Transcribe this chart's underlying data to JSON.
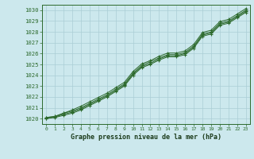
{
  "title": "Graphe pression niveau de la mer (hPa)",
  "background_color": "#cce8ed",
  "grid_color": "#aacdd5",
  "line_color": "#2d6a2d",
  "marker_color": "#2d6a2d",
  "xlim": [
    -0.5,
    23.5
  ],
  "ylim": [
    1019.5,
    1030.5
  ],
  "yticks": [
    1020,
    1021,
    1022,
    1023,
    1024,
    1025,
    1026,
    1027,
    1028,
    1029,
    1030
  ],
  "xticks": [
    0,
    1,
    2,
    3,
    4,
    5,
    6,
    7,
    8,
    9,
    10,
    11,
    12,
    13,
    14,
    15,
    16,
    17,
    18,
    19,
    20,
    21,
    22,
    23
  ],
  "lines": [
    [
      1020.1,
      1020.2,
      1020.5,
      1020.7,
      1021.0,
      1021.4,
      1021.8,
      1022.2,
      1022.7,
      1023.2,
      1024.2,
      1024.9,
      1025.25,
      1025.6,
      1025.9,
      1025.9,
      1026.1,
      1026.7,
      1027.8,
      1028.0,
      1028.8,
      1029.0,
      1029.5,
      1030.0
    ],
    [
      1020.1,
      1020.2,
      1020.5,
      1020.8,
      1021.15,
      1021.55,
      1021.95,
      1022.35,
      1022.85,
      1023.35,
      1024.35,
      1025.05,
      1025.35,
      1025.75,
      1026.05,
      1026.05,
      1026.25,
      1026.85,
      1027.95,
      1028.15,
      1028.95,
      1029.15,
      1029.65,
      1030.15
    ],
    [
      1020.05,
      1020.15,
      1020.4,
      1020.6,
      1020.9,
      1021.3,
      1021.7,
      1022.1,
      1022.6,
      1023.1,
      1024.1,
      1024.8,
      1025.1,
      1025.5,
      1025.8,
      1025.8,
      1026.0,
      1026.6,
      1027.7,
      1027.9,
      1028.7,
      1028.9,
      1029.4,
      1029.9
    ],
    [
      1020.0,
      1020.1,
      1020.3,
      1020.5,
      1020.8,
      1021.2,
      1021.6,
      1022.0,
      1022.5,
      1023.0,
      1024.0,
      1024.7,
      1025.0,
      1025.4,
      1025.7,
      1025.7,
      1025.9,
      1026.5,
      1027.6,
      1027.8,
      1028.6,
      1028.8,
      1029.3,
      1029.8
    ]
  ]
}
